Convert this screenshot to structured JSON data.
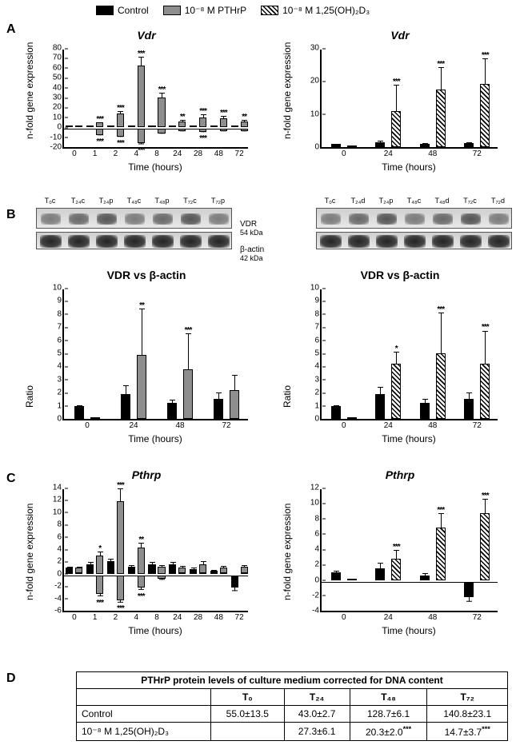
{
  "legend": {
    "control": "Control",
    "pthrp": "10⁻⁸ M PTHrP",
    "vitd": "10⁻⁸ M 1,25(OH)₂D₃"
  },
  "panelA": {
    "label": "A",
    "left": {
      "title": "Vdr",
      "ylabel": "n-fold gene expression",
      "xlabel": "Time (hours)",
      "ylim": [
        -20,
        80
      ],
      "ytick_step": 10,
      "x": [
        "0",
        "1",
        "2",
        "4",
        "8",
        "24",
        "28",
        "48",
        "72"
      ],
      "control": {
        "v": [
          1,
          1,
          1.5,
          2,
          2,
          1,
          2,
          1.5,
          1.5
        ],
        "e": [
          0.5,
          1,
          1,
          1,
          1,
          1,
          1,
          1,
          1
        ]
      },
      "treat": {
        "v": [
          1,
          5,
          14,
          62,
          30,
          6,
          10,
          9,
          6
        ],
        "e": [
          0.5,
          1,
          3,
          10,
          6,
          2,
          4,
          3,
          2
        ],
        "sig": [
          "",
          "***",
          "***",
          "***",
          "***",
          "**",
          "***",
          "***",
          "**"
        ]
      },
      "neg_control": {
        "v": [
          0,
          -6,
          -8,
          -14,
          -5,
          -2,
          -3,
          -2,
          -2
        ],
        "e": [
          0,
          1,
          1,
          2,
          1,
          1,
          1,
          1,
          1
        ],
        "sig": [
          "",
          "***",
          "***",
          "***",
          "",
          "",
          "***",
          "",
          ""
        ]
      }
    },
    "right": {
      "title": "Vdr",
      "ylabel": "n-fold gene expression",
      "xlabel": "Time (hours)",
      "ylim": [
        0,
        30
      ],
      "ytick_step": 10,
      "x": [
        "0",
        "24",
        "48",
        "72"
      ],
      "control": {
        "v": [
          1,
          1.5,
          1,
          1.2
        ],
        "e": [
          0.3,
          0.8,
          0.5,
          0.6
        ]
      },
      "treat": {
        "v": [
          0,
          11,
          17.5,
          19
        ],
        "e": [
          0,
          8,
          7,
          8
        ],
        "sig": [
          "",
          "***",
          "***",
          "***"
        ]
      }
    }
  },
  "panelB": {
    "label": "B",
    "lanes_left": [
      "T₀c",
      "T₂₄c",
      "T₂₄p",
      "T₄₈c",
      "T₄₈p",
      "T₇₂c",
      "T₇₂p"
    ],
    "lanes_right": [
      "T₀c",
      "T₂₄d",
      "T₂₄p",
      "T₄₈c",
      "T₄₈d",
      "T₇₂c",
      "T₇₂d"
    ],
    "vdr_label": "VDR",
    "vdr_kda": "54 kDa",
    "actin_label": "β-actin",
    "actin_kda": "42 kDa",
    "chart_title": "VDR vs β-actin",
    "ylabel": "Ratio",
    "xlabel": "Time (hours)",
    "ylim": [
      0,
      10
    ],
    "ytick_step": 1,
    "x": [
      "0",
      "24",
      "48",
      "72"
    ],
    "left": {
      "control": {
        "v": [
          1,
          1.9,
          1.2,
          1.5
        ],
        "e": [
          0.1,
          0.7,
          0.3,
          0.6
        ]
      },
      "treat": {
        "v": [
          0,
          4.9,
          3.8,
          2.2
        ],
        "e": [
          0,
          3.6,
          2.8,
          1.2
        ],
        "sig": [
          "",
          "**",
          "***",
          ""
        ]
      }
    },
    "right": {
      "control": {
        "v": [
          1,
          1.9,
          1.2,
          1.5
        ],
        "e": [
          0.1,
          0.6,
          0.4,
          0.6
        ]
      },
      "treat": {
        "v": [
          0,
          4.2,
          5,
          4.2
        ],
        "e": [
          0,
          1.0,
          3.2,
          2.6
        ],
        "sig": [
          "",
          "*",
          "***",
          "***"
        ]
      }
    }
  },
  "panelC": {
    "label": "C",
    "left": {
      "title": "Pthrp",
      "ylabel": "n-fold gene expression",
      "xlabel": "Time (hours)",
      "ylim": [
        -6,
        14
      ],
      "ytick_step": 2,
      "x": [
        "0",
        "1",
        "2",
        "4",
        "8",
        "24",
        "28",
        "48",
        "72"
      ],
      "control": {
        "v": [
          1,
          1.5,
          2,
          1.2,
          1.5,
          1.5,
          0.8,
          0.5,
          -2
        ],
        "e": [
          0.3,
          0.5,
          0.6,
          0.4,
          0.5,
          0.5,
          0.4,
          0.3,
          0.7
        ]
      },
      "treat": {
        "v": [
          1,
          3,
          11.8,
          4.2,
          1.2,
          1,
          1.6,
          1,
          1.2
        ],
        "e": [
          0.3,
          0.8,
          2.2,
          1,
          0.4,
          0.4,
          0.6,
          0.4,
          0.4
        ],
        "sig": [
          "",
          "*",
          "***",
          "**",
          "",
          "",
          "",
          "",
          ""
        ]
      },
      "neg": {
        "v": [
          0,
          -3,
          -4,
          -2,
          -0.5,
          0,
          0,
          0,
          0
        ],
        "e": [
          0,
          0.5,
          0.5,
          0.5,
          0.3,
          0,
          0,
          0,
          0
        ],
        "sig": [
          "",
          "***",
          "***",
          "***",
          "",
          "",
          "",
          "",
          ""
        ]
      }
    },
    "right": {
      "title": "Pthrp",
      "ylabel": "n-fold gene expression",
      "xlabel": "Time (hours)",
      "ylim": [
        -4,
        12
      ],
      "ytick_step": 2,
      "x": [
        "0",
        "24",
        "48",
        "72"
      ],
      "control": {
        "v": [
          1,
          1.5,
          0.6,
          -2
        ],
        "e": [
          0.3,
          0.8,
          0.4,
          0.7
        ]
      },
      "treat": {
        "v": [
          0,
          2.8,
          6.8,
          8.7
        ],
        "e": [
          0,
          1.2,
          2,
          2
        ],
        "sig": [
          "",
          "***",
          "***",
          "***"
        ]
      }
    }
  },
  "panelD": {
    "label": "D",
    "title": "PTHrP protein levels of culture medium corrected for DNA content",
    "cols": [
      "",
      "T₀",
      "T₂₄",
      "T₄₈",
      "T₇₂"
    ],
    "rows": [
      {
        "label": "Control",
        "vals": [
          "55.0±13.5",
          "43.0±2.7",
          "128.7±6.1",
          "140.8±23.1"
        ]
      },
      {
        "label": "10⁻⁸ M 1,25(OH)₂D₃",
        "vals": [
          "",
          "27.3±6.1",
          "20.3±2.0***",
          "14.7±3.7***"
        ]
      }
    ]
  },
  "colors": {
    "black": "#000000",
    "gray": "#8e8e8e",
    "white": "#ffffff"
  }
}
